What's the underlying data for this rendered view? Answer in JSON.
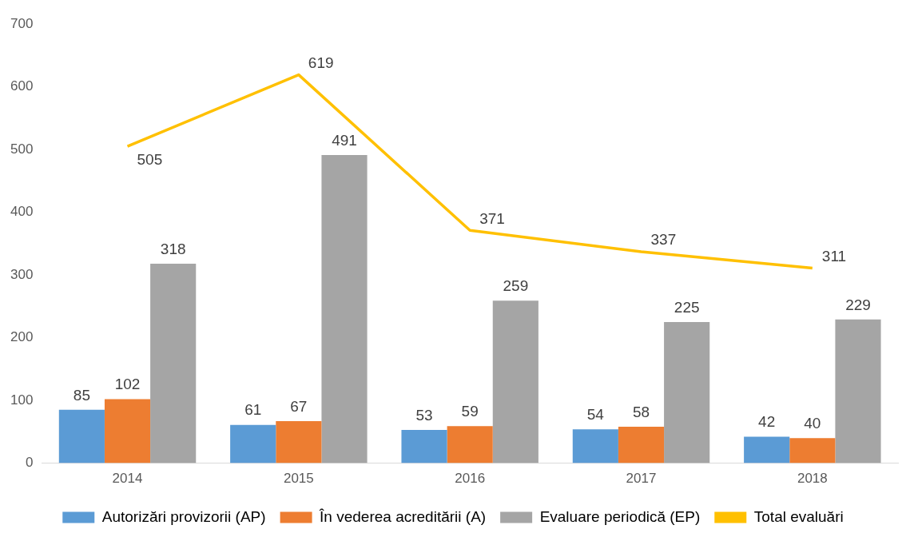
{
  "chart_data": {
    "type": "bar",
    "categories": [
      "2014",
      "2015",
      "2016",
      "2017",
      "2018"
    ],
    "series": [
      {
        "name": "Autorizări provizorii (AP)",
        "color": "#5b9bd5",
        "values": [
          85,
          61,
          53,
          54,
          42
        ]
      },
      {
        "name": "În vederea acreditării (A)",
        "color": "#ed7d31",
        "values": [
          102,
          67,
          59,
          58,
          40
        ]
      },
      {
        "name": "Evaluare periodică (EP)",
        "color": "#a5a5a5",
        "values": [
          318,
          491,
          259,
          225,
          229
        ]
      },
      {
        "name": "Total evaluări",
        "color": "#ffc000",
        "type": "line",
        "values": [
          505,
          619,
          371,
          337,
          311
        ]
      }
    ],
    "ylim": [
      0,
      700
    ],
    "yticks": [
      0,
      100,
      200,
      300,
      400,
      500,
      600,
      700
    ],
    "grid": false,
    "legend": "bottom",
    "data_labels": true,
    "marker": "none"
  }
}
